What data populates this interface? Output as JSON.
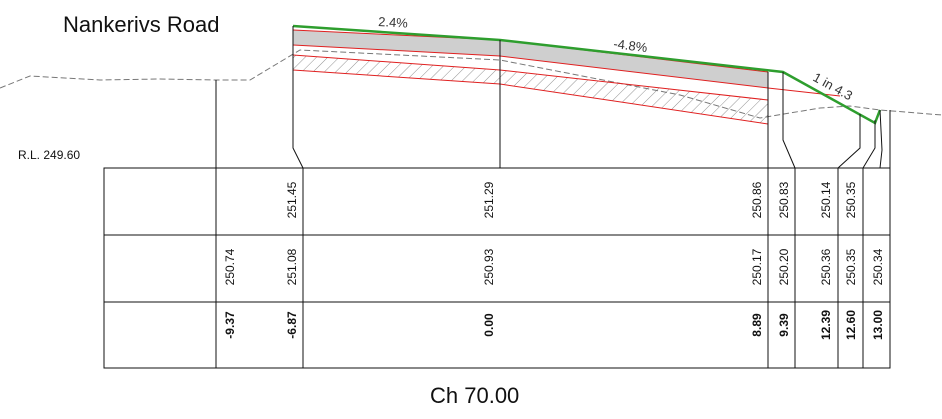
{
  "title": "Nankerivs Road",
  "chainage": "Ch 70.00",
  "datum": "R.L. 249.60",
  "grades": {
    "left": "2.4%",
    "right": "-4.8%",
    "batter": "1 in 4.3"
  },
  "table": {
    "design_levels": [
      "251.45",
      "251.29",
      "250.86",
      "250.83",
      "250.14",
      "250.35"
    ],
    "natural_levels": [
      "250.74",
      "251.08",
      "250.93",
      "250.17",
      "250.20",
      "250.36",
      "250.35",
      "250.34"
    ],
    "offsets": [
      "-9.37",
      "-6.87",
      "0.00",
      "8.89",
      "9.39",
      "12.39",
      "12.60",
      "13.00"
    ]
  },
  "colors": {
    "finished_surface": "#2e9e2e",
    "pavement_layers": "#e02020",
    "pavement_fill": "#cfcfcf",
    "natural_surface": "#777777",
    "lines": "#111111"
  }
}
